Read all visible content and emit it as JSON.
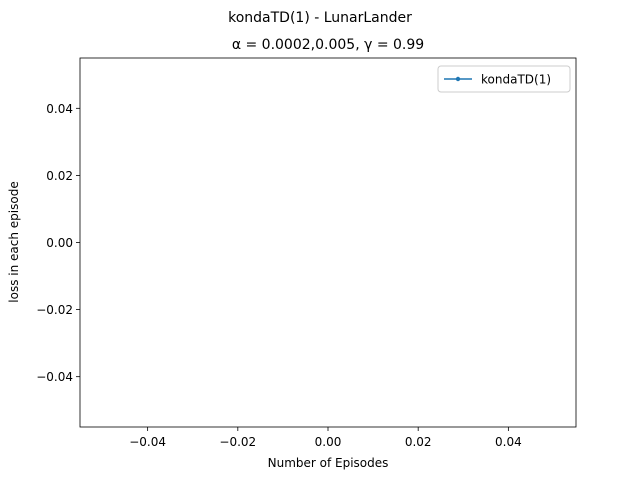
{
  "chart_data": {
    "type": "line",
    "suptitle": "kondaTD(1) - LunarLander",
    "title": "α = 0.0002,0.005, γ = 0.99",
    "xlabel": "Number of Episodes",
    "ylabel": "loss in each episode",
    "xlim": [
      -0.055,
      0.055
    ],
    "ylim": [
      -0.055,
      0.055
    ],
    "xticks": [
      -0.04,
      -0.02,
      0.0,
      0.02,
      0.04
    ],
    "yticks": [
      -0.04,
      -0.02,
      0.0,
      0.02,
      0.04
    ],
    "xtick_labels": [
      "−0.04",
      "−0.02",
      "0.00",
      "0.02",
      "0.04"
    ],
    "ytick_labels": [
      "−0.04",
      "−0.02",
      "0.00",
      "0.02",
      "0.04"
    ],
    "grid": false,
    "legend_position": "top-right",
    "series": [
      {
        "name": "kondaTD(1)",
        "x": [],
        "y": [],
        "color": "#1f77b4",
        "marker": "circle"
      }
    ]
  }
}
